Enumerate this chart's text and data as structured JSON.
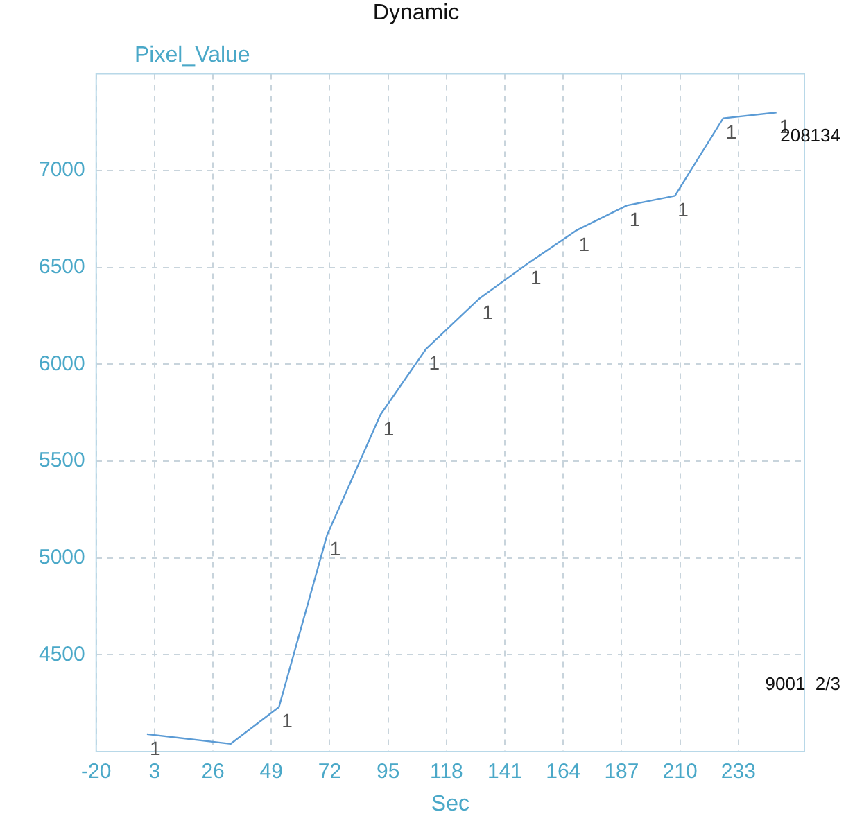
{
  "chart_data": {
    "type": "line",
    "title": "Dynamic",
    "xlabel": "Sec",
    "ylabel": "Pixel_Value",
    "x": [
      0,
      33,
      52,
      71,
      92,
      110,
      131,
      150,
      169,
      189,
      208,
      227,
      248
    ],
    "series": [
      {
        "color": "#5b9bd5",
        "values": [
          4090,
          4040,
          4230,
          5120,
          5740,
          6080,
          6340,
          6520,
          6690,
          6820,
          6870,
          7270,
          7300
        ]
      }
    ],
    "xlim": [
      -20,
      259
    ],
    "xticks": [
      -20,
      3,
      26,
      49,
      72,
      95,
      118,
      141,
      164,
      187,
      210,
      233
    ],
    "ylim": [
      4000,
      7500
    ],
    "yticks": [
      {
        "value": 4000,
        "label": null
      },
      4500,
      5000,
      5500,
      6000,
      6500,
      7000,
      {
        "value": 7500,
        "label": null
      }
    ],
    "annotations": [
      "208134",
      "9001  2/3",
      {
        "text": "1",
        "x": 0,
        "y": 4090
      },
      {
        "text": "1",
        "x": 52,
        "y": 4230
      },
      {
        "text": "1",
        "x": 71,
        "y": 5120
      },
      {
        "text": "1",
        "x": 92,
        "y": 5740
      },
      {
        "text": "1",
        "x": 110,
        "y": 6080
      },
      {
        "text": "1",
        "x": 131,
        "y": 6340
      },
      {
        "text": "1",
        "x": 150,
        "y": 6520
      },
      {
        "text": "1",
        "x": 169,
        "y": 6690
      },
      {
        "text": "1",
        "x": 189,
        "y": 6820
      },
      {
        "text": "1",
        "x": 208,
        "y": 6870
      },
      {
        "text": "1",
        "x": 227,
        "y": 7270
      },
      {
        "text": "1",
        "x": 248,
        "y": 7300
      }
    ],
    "grid": true,
    "line_style": "solid",
    "marker": "none",
    "legend": false
  }
}
